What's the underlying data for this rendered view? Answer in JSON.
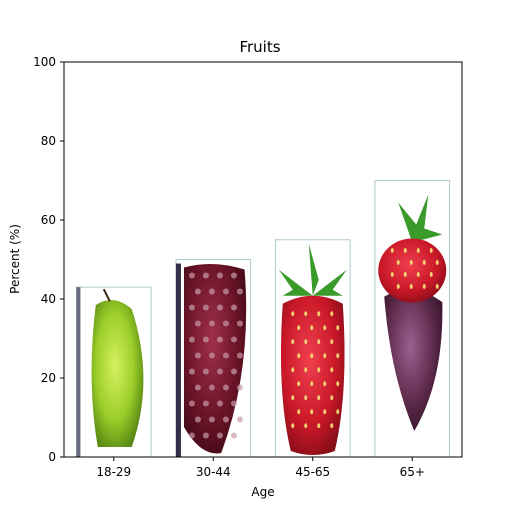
{
  "chart_data": {
    "type": "bar",
    "title": "Fruits",
    "xlabel": "Age",
    "ylabel": "Percent (%)",
    "categories": [
      "18-29",
      "30-44",
      "45-65",
      "65+"
    ],
    "values": [
      43,
      50,
      55,
      70
    ],
    "bar_images": [
      "pear",
      "blackberry",
      "strawberry",
      "strawberry-and-blackberry"
    ],
    "ylim": [
      0,
      100
    ],
    "yticks": [
      0,
      20,
      40,
      60,
      80,
      100
    ],
    "grid": false,
    "legend": "none"
  }
}
